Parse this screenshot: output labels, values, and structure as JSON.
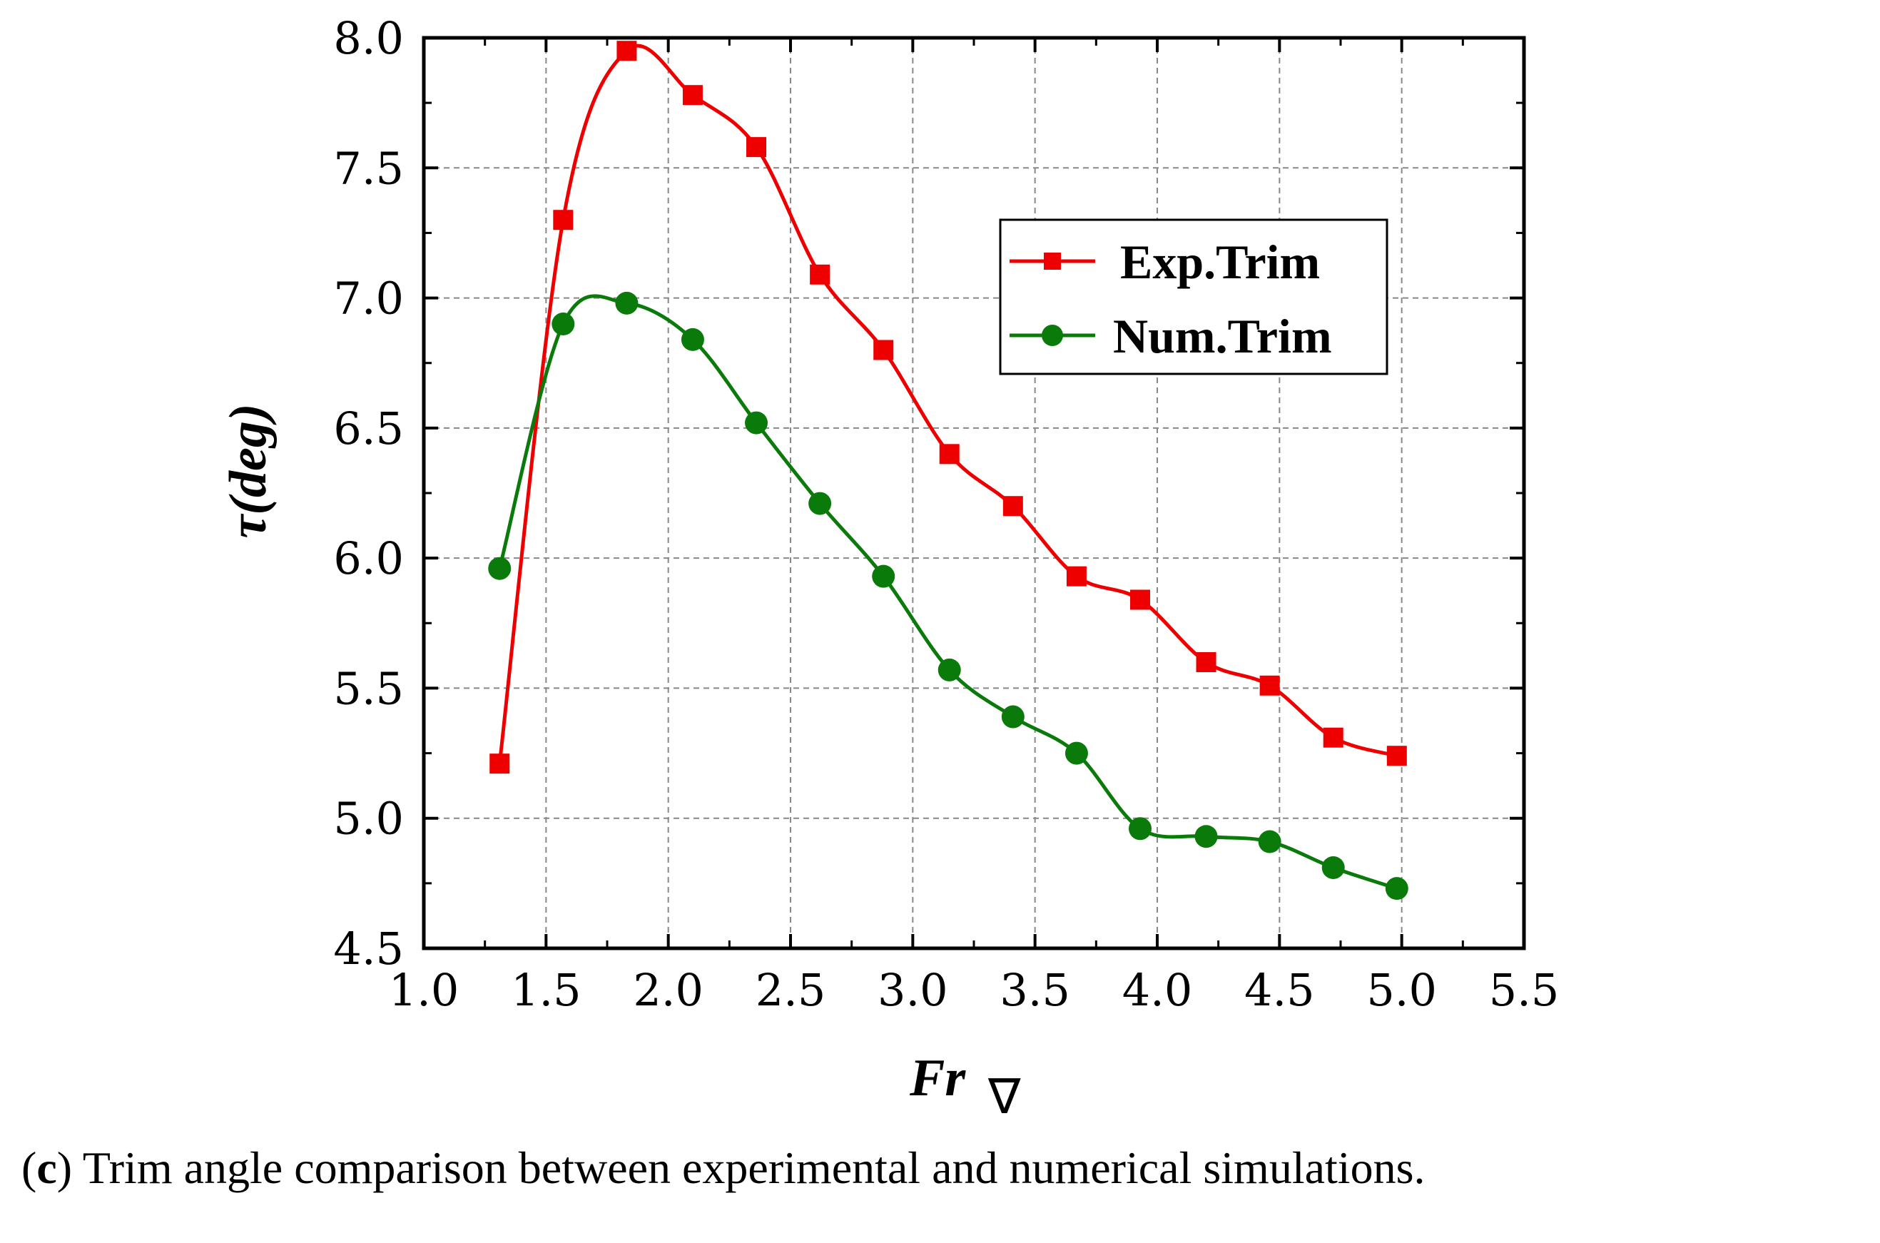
{
  "chart_data": {
    "type": "line",
    "xlabel": "Fr",
    "xlabel_subscript": "∇",
    "ylabel": "τ(deg)",
    "xlim": [
      1.0,
      5.5
    ],
    "ylim": [
      4.5,
      8.0
    ],
    "x_ticks": [
      "1.0",
      "1.5",
      "2.0",
      "2.5",
      "3.0",
      "3.5",
      "4.0",
      "4.5",
      "5.0",
      "5.5"
    ],
    "y_ticks": [
      "4.5",
      "5.0",
      "5.5",
      "6.0",
      "6.5",
      "7.0",
      "7.5",
      "8.0"
    ],
    "grid": true,
    "legend_position": "upper-right",
    "series": [
      {
        "name": "Exp.Trim",
        "color": "#ee0000",
        "marker": "square",
        "x": [
          1.31,
          1.57,
          1.83,
          2.1,
          2.36,
          2.62,
          2.88,
          3.15,
          3.41,
          3.67,
          3.93,
          4.2,
          4.46,
          4.72,
          4.98
        ],
        "y": [
          5.21,
          7.3,
          7.95,
          7.78,
          7.58,
          7.09,
          6.8,
          6.4,
          6.2,
          5.93,
          5.84,
          5.6,
          5.51,
          5.31,
          5.24
        ]
      },
      {
        "name": "Num.Trim",
        "color": "#0a7a0a",
        "marker": "circle",
        "x": [
          1.31,
          1.57,
          1.83,
          2.1,
          2.36,
          2.62,
          2.88,
          3.15,
          3.41,
          3.67,
          3.93,
          4.2,
          4.46,
          4.72,
          4.98
        ],
        "y": [
          5.96,
          6.9,
          6.98,
          6.84,
          6.52,
          6.21,
          5.93,
          5.57,
          5.39,
          5.25,
          4.96,
          4.93,
          4.91,
          4.81,
          4.73
        ]
      }
    ]
  },
  "caption": {
    "letter": "c",
    "text": " Trim angle comparison between experimental and numerical simulations."
  }
}
